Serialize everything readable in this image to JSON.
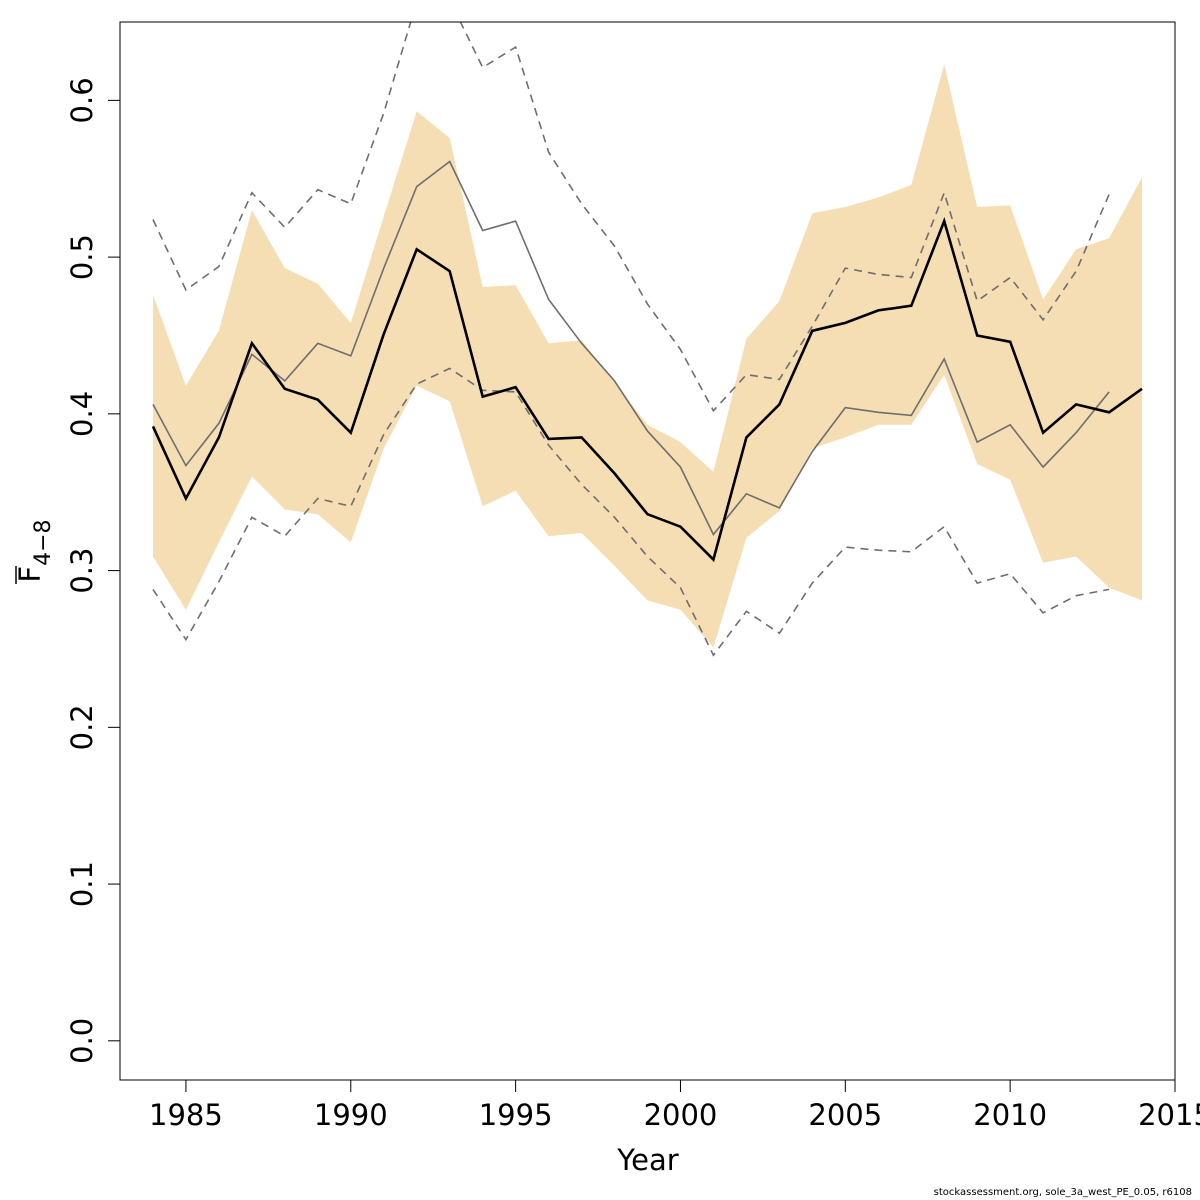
{
  "chart_data": {
    "type": "line",
    "title": "",
    "xlabel": "Year",
    "ylabel": {
      "main": "F",
      "subscript": "4−8",
      "overline": true
    },
    "xlim": [
      1983,
      2015
    ],
    "ylim": [
      -0.025,
      0.65
    ],
    "x_ticks": [
      1985,
      1990,
      1995,
      2000,
      2005,
      2010,
      2015
    ],
    "y_ticks": [
      "0.0",
      "0.1",
      "0.2",
      "0.3",
      "0.4",
      "0.5",
      "0.6"
    ],
    "grid": false,
    "legend": "none",
    "colors": {
      "band": "#f5deb3",
      "current": "#000000",
      "previous": "#6e6e6e",
      "previous_ci": "#6e6e6e"
    },
    "band": {
      "name": "",
      "x": [
        1984,
        1985,
        1986,
        1987,
        1988,
        1989,
        1990,
        1991,
        1992,
        1993,
        1994,
        1995,
        1996,
        1997,
        1998,
        1999,
        2000,
        2001,
        2002,
        2003,
        2004,
        2005,
        2006,
        2007,
        2008,
        2009,
        2010,
        2011,
        2012,
        2013,
        2014
      ],
      "upper": [
        0.476,
        0.418,
        0.453,
        0.53,
        0.493,
        0.483,
        0.458,
        0.526,
        0.593,
        0.576,
        0.481,
        0.482,
        0.445,
        0.447,
        0.42,
        0.393,
        0.382,
        0.363,
        0.448,
        0.472,
        0.528,
        0.532,
        0.538,
        0.546,
        0.623,
        0.532,
        0.533,
        0.473,
        0.505,
        0.512,
        0.551
      ],
      "lower": [
        0.309,
        0.275,
        0.318,
        0.36,
        0.339,
        0.336,
        0.318,
        0.378,
        0.418,
        0.408,
        0.341,
        0.351,
        0.322,
        0.324,
        0.303,
        0.281,
        0.275,
        0.251,
        0.321,
        0.338,
        0.378,
        0.385,
        0.393,
        0.393,
        0.425,
        0.368,
        0.358,
        0.305,
        0.309,
        0.289,
        0.281
      ]
    },
    "series": [
      {
        "name": "",
        "style": "solid-thick",
        "x": [
          1984,
          1985,
          1986,
          1987,
          1988,
          1989,
          1990,
          1991,
          1992,
          1993,
          1994,
          1995,
          1996,
          1997,
          1998,
          1999,
          2000,
          2001,
          2002,
          2003,
          2004,
          2005,
          2006,
          2007,
          2008,
          2009,
          2010,
          2011,
          2012,
          2013,
          2014
        ],
        "values": [
          0.392,
          0.346,
          0.385,
          0.445,
          0.416,
          0.409,
          0.388,
          0.451,
          0.505,
          0.491,
          0.411,
          0.417,
          0.384,
          0.385,
          0.362,
          0.336,
          0.328,
          0.307,
          0.385,
          0.406,
          0.453,
          0.458,
          0.466,
          0.469,
          0.523,
          0.45,
          0.446,
          0.388,
          0.406,
          0.401,
          0.416
        ]
      },
      {
        "name": "",
        "style": "solid-thin",
        "x": [
          1984,
          1985,
          1986,
          1987,
          1988,
          1989,
          1990,
          1991,
          1992,
          1993,
          1994,
          1995,
          1996,
          1997,
          1998,
          1999,
          2000,
          2001,
          2002,
          2003,
          2004,
          2005,
          2006,
          2007,
          2008,
          2009,
          2010,
          2011,
          2012,
          2013
        ],
        "values": [
          0.406,
          0.367,
          0.394,
          0.438,
          0.421,
          0.445,
          0.437,
          0.493,
          0.545,
          0.561,
          0.517,
          0.523,
          0.473,
          0.445,
          0.421,
          0.389,
          0.366,
          0.323,
          0.349,
          0.34,
          0.376,
          0.404,
          0.401,
          0.399,
          0.435,
          0.382,
          0.393,
          0.366,
          0.388,
          0.414
        ]
      },
      {
        "name": "",
        "style": "dashed",
        "x": [
          1984,
          1985,
          1986,
          1987,
          1988,
          1989,
          1990,
          1991,
          1992,
          1993,
          1994,
          1995,
          1996,
          1997,
          1998,
          1999,
          2000,
          2001,
          2002,
          2003,
          2004,
          2005,
          2006,
          2007,
          2008,
          2009,
          2010,
          2011,
          2012,
          2013
        ],
        "values": [
          0.524,
          0.479,
          0.494,
          0.541,
          0.519,
          0.543,
          0.534,
          0.592,
          0.663,
          0.664,
          0.621,
          0.634,
          0.567,
          0.534,
          0.507,
          0.47,
          0.441,
          0.402,
          0.425,
          0.422,
          0.456,
          0.493,
          0.489,
          0.487,
          0.541,
          0.472,
          0.487,
          0.46,
          0.491,
          0.54
        ]
      },
      {
        "name": "",
        "style": "dashed",
        "x": [
          1984,
          1985,
          1986,
          1987,
          1988,
          1989,
          1990,
          1991,
          1992,
          1993,
          1994,
          1995,
          1996,
          1997,
          1998,
          1999,
          2000,
          2001,
          2002,
          2003,
          2004,
          2005,
          2006,
          2007,
          2008,
          2009,
          2010,
          2011,
          2012,
          2013
        ],
        "values": [
          0.288,
          0.256,
          0.293,
          0.334,
          0.322,
          0.346,
          0.341,
          0.387,
          0.419,
          0.429,
          0.415,
          0.414,
          0.38,
          0.355,
          0.334,
          0.309,
          0.289,
          0.246,
          0.274,
          0.26,
          0.292,
          0.315,
          0.313,
          0.312,
          0.328,
          0.292,
          0.298,
          0.273,
          0.284,
          0.288
        ]
      }
    ]
  },
  "footnote": "stockassessment.org, sole_3a_west_PE_0.05, r6108"
}
